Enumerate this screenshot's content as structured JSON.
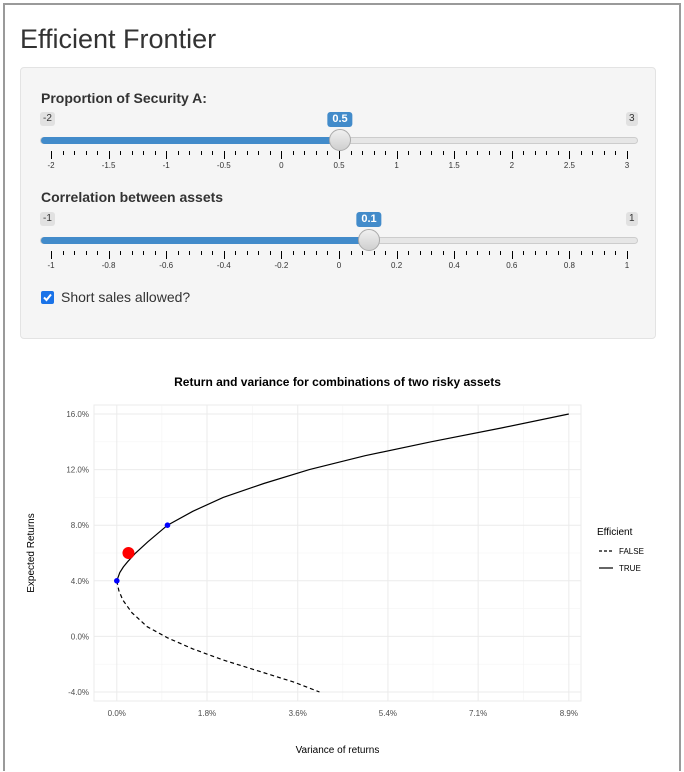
{
  "page_title": "Efficient Frontier",
  "controls": {
    "proportion": {
      "label": "Proportion of Security A:",
      "min_label": "-2",
      "max_label": "3",
      "value_label": "0.5",
      "min": -2,
      "max": 3,
      "value": 0.5,
      "ticks": [
        "-2",
        "-1.5",
        "-1",
        "-0.5",
        "0",
        "0.5",
        "1",
        "1.5",
        "2",
        "2.5",
        "3"
      ]
    },
    "correlation": {
      "label": "Correlation between assets",
      "min_label": "-1",
      "max_label": "1",
      "value_label": "0.1",
      "min": -1,
      "max": 1,
      "value": 0.1,
      "ticks": [
        "-1",
        "-0.8",
        "-0.6",
        "-0.4",
        "-0.2",
        "0",
        "0.2",
        "0.4",
        "0.6",
        "0.8",
        "1"
      ]
    },
    "short_sales": {
      "label": "Short sales allowed?",
      "checked": true
    }
  },
  "colors": {
    "accent": "#428bca",
    "checkbox": "#1a73e8",
    "selected_point": "#ff0000",
    "asset_points": "#0000ff"
  },
  "chart_data": {
    "type": "line",
    "title": "Return and variance for combinations of two risky assets",
    "xlabel": "Variance of returns",
    "ylabel": "Expected Returns",
    "xlim": [
      -0.0045,
      0.0916
    ],
    "ylim": [
      -0.0465,
      0.1665
    ],
    "x_ticks": [
      "0.0%",
      "1.8%",
      "3.6%",
      "5.4%",
      "7.1%",
      "8.9%"
    ],
    "y_ticks": [
      "-4.0%",
      "0.0%",
      "4.0%",
      "8.0%",
      "12.0%",
      "16.0%"
    ],
    "x_tick_values": [
      0.0,
      0.0178,
      0.0357,
      0.0535,
      0.0713,
      0.0892
    ],
    "y_tick_values": [
      -0.04,
      0.0,
      0.04,
      0.08,
      0.12,
      0.16
    ],
    "grid": true,
    "legend": {
      "title": "Efficient",
      "position": "right",
      "entries": [
        "FALSE",
        "TRUE"
      ]
    },
    "series": [
      {
        "name": "TRUE",
        "style": "solid",
        "x": [
          0.0,
          0.0006,
          0.0013,
          0.0022,
          0.0037,
          0.0061,
          0.01,
          0.015,
          0.021,
          0.029,
          0.038,
          0.049,
          0.062,
          0.076,
          0.0892
        ],
        "y": [
          0.04,
          0.046,
          0.05,
          0.054,
          0.06,
          0.068,
          0.08,
          0.09,
          0.1,
          0.11,
          0.12,
          0.13,
          0.14,
          0.15,
          0.16
        ]
      },
      {
        "name": "FALSE",
        "style": "dashed",
        "x": [
          0.0,
          0.0004,
          0.0012,
          0.003,
          0.006,
          0.01,
          0.015,
          0.021,
          0.028,
          0.035,
          0.04
        ],
        "y": [
          0.04,
          0.033,
          0.026,
          0.017,
          0.007,
          -0.001,
          -0.009,
          -0.017,
          -0.025,
          -0.033,
          -0.04
        ]
      }
    ],
    "points": [
      {
        "x": 0.0,
        "y": 0.04,
        "kind": "asset"
      },
      {
        "x": 0.01,
        "y": 0.08,
        "kind": "asset"
      },
      {
        "x": 0.0023,
        "y": 0.06,
        "kind": "selected"
      }
    ]
  }
}
